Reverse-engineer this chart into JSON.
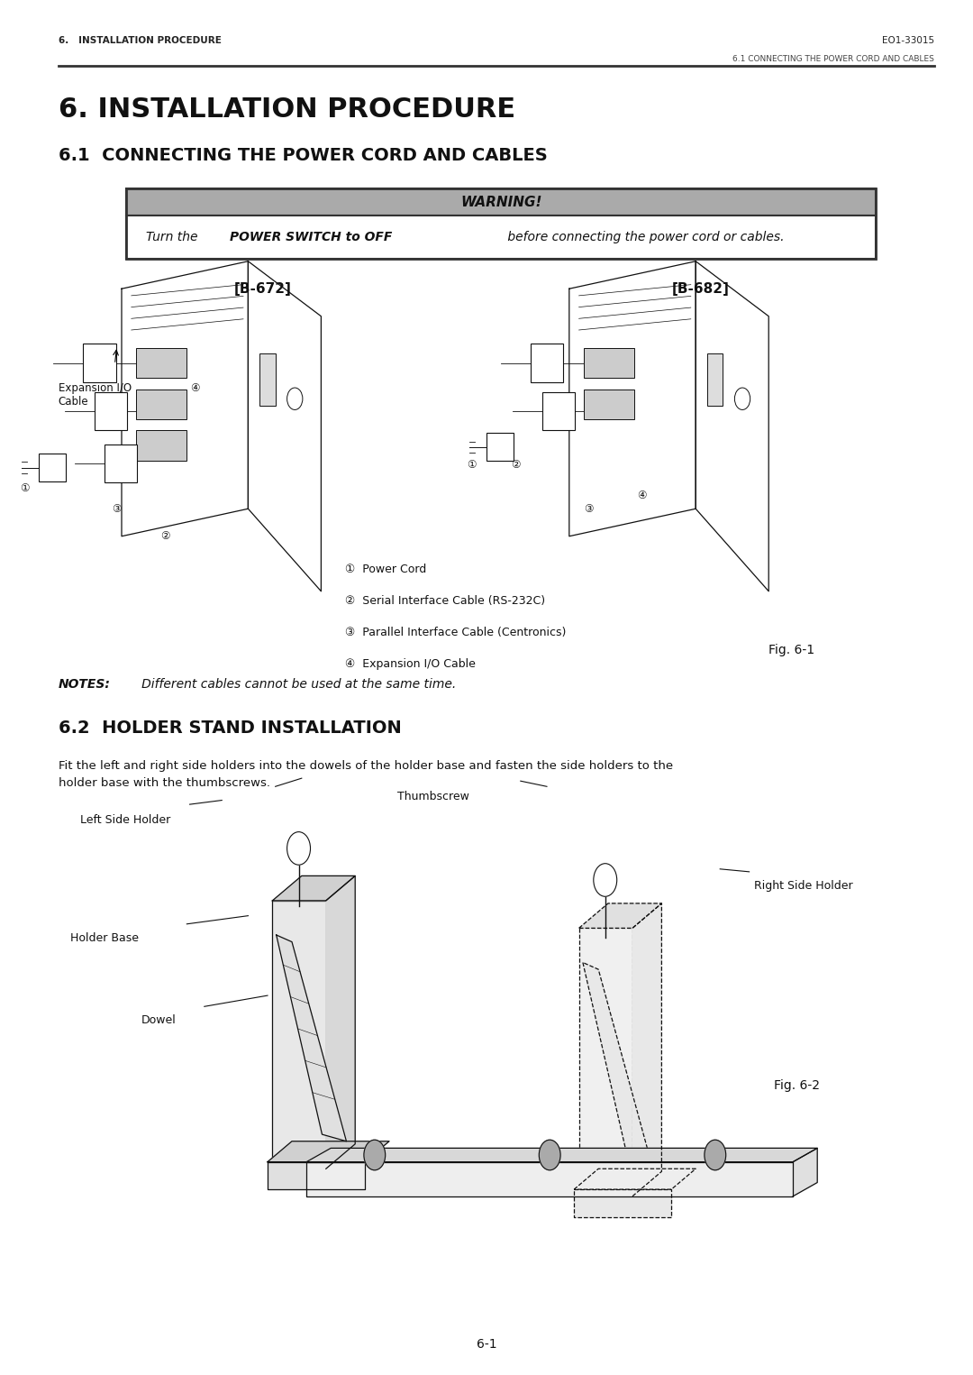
{
  "bg_color": "#ffffff",
  "page_width": 10.8,
  "page_height": 15.25,
  "header_left": "6.   INSTALLATION PROCEDURE",
  "header_right": "EO1-33015",
  "subheader_right": "6.1 CONNECTING THE POWER CORD AND CABLES",
  "title_main": "6. INSTALLATION PROCEDURE",
  "title_sub": "6.1  CONNECTING THE POWER CORD AND CABLES",
  "warning_title": "WARNING!",
  "b672_label": "[B-672]",
  "b682_label": "[B-682]",
  "expansion_label": "Expansion I/O\nCable",
  "fig1_caption": "Fig. 6-1",
  "legend_items": [
    "①  Power Cord",
    "②  Serial Interface Cable (RS-232C)",
    "③  Parallel Interface Cable (Centronics)",
    "④  Expansion I/O Cable"
  ],
  "notes_bold": "NOTES:",
  "notes_text": "   Different cables cannot be used at the same time.",
  "section62_title": "6.2  HOLDER STAND INSTALLATION",
  "section62_body": "Fit the left and right side holders into the dowels of the holder base and fasten the side holders to the\nholder base with the thumbscrews.",
  "thumbscrew_label": "Thumbscrew",
  "left_holder_label": "Left Side Holder",
  "right_holder_label": "Right Side Holder",
  "holder_base_label": "Holder Base",
  "dowel_label": "Dowel",
  "fig2_caption": "Fig. 6-2",
  "page_num": "6-1"
}
